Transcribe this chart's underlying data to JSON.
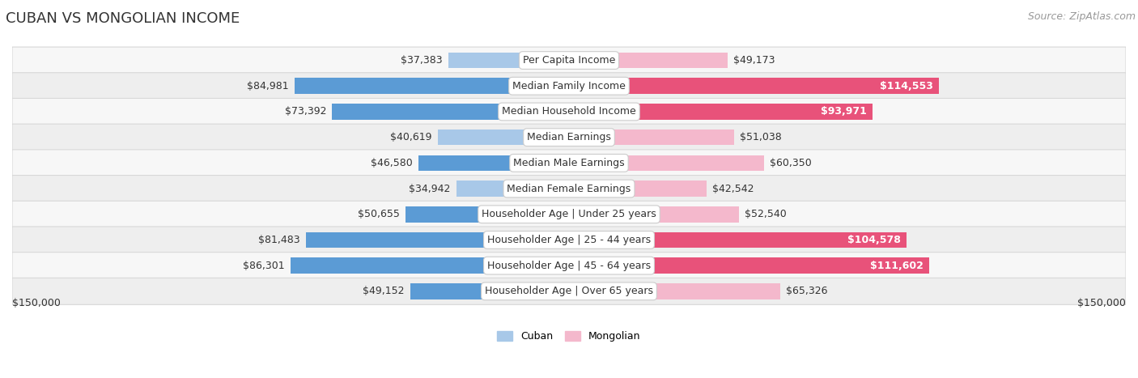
{
  "title": "CUBAN VS MONGOLIAN INCOME",
  "source": "Source: ZipAtlas.com",
  "categories": [
    "Per Capita Income",
    "Median Family Income",
    "Median Household Income",
    "Median Earnings",
    "Median Male Earnings",
    "Median Female Earnings",
    "Householder Age | Under 25 years",
    "Householder Age | 25 - 44 years",
    "Householder Age | 45 - 64 years",
    "Householder Age | Over 65 years"
  ],
  "cuban_values": [
    37383,
    84981,
    73392,
    40619,
    46580,
    34942,
    50655,
    81483,
    86301,
    49152
  ],
  "mongolian_values": [
    49173,
    114553,
    93971,
    51038,
    60350,
    42542,
    52540,
    104578,
    111602,
    65326
  ],
  "cuban_color_light": "#a8c8e8",
  "cuban_color_dark": "#5b9bd5",
  "mongolian_color_light": "#f4b8cc",
  "mongolian_color_dark": "#e8527a",
  "cuban_label": "Cuban",
  "mongolian_label": "Mongolian",
  "x_max": 150000,
  "axis_label_left": "$150,000",
  "axis_label_right": "$150,000",
  "bg_color": "#ffffff",
  "row_bg_even": "#f7f7f7",
  "row_bg_odd": "#eeeeee",
  "row_border": "#d8d8d8",
  "title_fontsize": 13,
  "source_fontsize": 9,
  "label_fontsize": 9,
  "value_fontsize": 9,
  "cuban_dark_threshold": 0.5,
  "mongolian_dark_threshold": 0.6
}
